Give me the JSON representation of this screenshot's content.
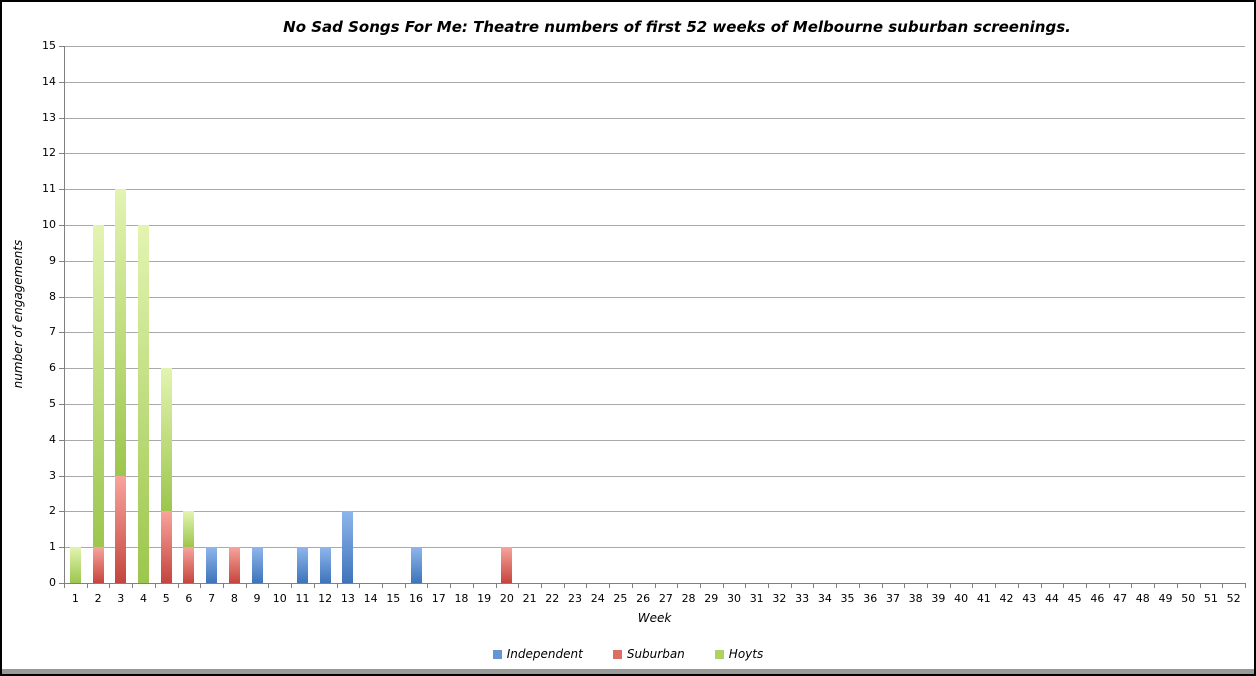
{
  "window": {
    "background": "#ffffff",
    "border_color": "#000000",
    "bottom_bar_color": "#999999"
  },
  "chart_data": {
    "type": "stacked-bar",
    "title": "No Sad Songs For Me: Theatre numbers of first 52 weeks of Melbourne suburban screenings.",
    "xlabel": "Week",
    "ylabel": "number of engagements",
    "x": [
      1,
      2,
      3,
      4,
      5,
      6,
      7,
      8,
      9,
      10,
      11,
      12,
      13,
      14,
      15,
      16,
      17,
      18,
      19,
      20,
      21,
      22,
      23,
      24,
      25,
      26,
      27,
      28,
      29,
      30,
      31,
      32,
      33,
      34,
      35,
      36,
      37,
      38,
      39,
      40,
      41,
      42,
      43,
      44,
      45,
      46,
      47,
      48,
      49,
      50,
      51,
      52
    ],
    "ylim": [
      0,
      15
    ],
    "yticks": [
      0,
      1,
      2,
      3,
      4,
      5,
      6,
      7,
      8,
      9,
      10,
      11,
      12,
      13,
      14,
      15
    ],
    "grid": true,
    "legend_position": "bottom",
    "axis_color": "#808080",
    "gridline_color": "#a9a9a9",
    "series": [
      {
        "name": "Independent",
        "legend_color": "#6496d6",
        "gradient_top": "#8fb6ec",
        "gradient_bottom": "#3e74ba",
        "values": [
          0,
          0,
          0,
          0,
          0,
          0,
          1,
          0,
          1,
          0,
          1,
          1,
          2,
          0,
          0,
          1,
          0,
          0,
          0,
          0,
          0,
          0,
          0,
          0,
          0,
          0,
          0,
          0,
          0,
          0,
          0,
          0,
          0,
          0,
          0,
          0,
          0,
          0,
          0,
          0,
          0,
          0,
          0,
          0,
          0,
          0,
          0,
          0,
          0,
          0,
          0,
          0
        ]
      },
      {
        "name": "Suburban",
        "legend_color": "#dd6e66",
        "gradient_top": "#f8a49d",
        "gradient_bottom": "#c4453d",
        "values": [
          0,
          1,
          3,
          0,
          2,
          1,
          0,
          1,
          0,
          0,
          0,
          0,
          0,
          0,
          0,
          0,
          0,
          0,
          0,
          1,
          0,
          0,
          0,
          0,
          0,
          0,
          0,
          0,
          0,
          0,
          0,
          0,
          0,
          0,
          0,
          0,
          0,
          0,
          0,
          0,
          0,
          0,
          0,
          0,
          0,
          0,
          0,
          0,
          0,
          0,
          0,
          0
        ]
      },
      {
        "name": "Hoyts",
        "legend_color": "#b0d264",
        "gradient_top": "#e3f4b1",
        "gradient_bottom": "#9cc64d",
        "values": [
          1,
          9,
          8,
          10,
          4,
          1,
          0,
          0,
          0,
          0,
          0,
          0,
          0,
          0,
          0,
          0,
          0,
          0,
          0,
          0,
          0,
          0,
          0,
          0,
          0,
          0,
          0,
          0,
          0,
          0,
          0,
          0,
          0,
          0,
          0,
          0,
          0,
          0,
          0,
          0,
          0,
          0,
          0,
          0,
          0,
          0,
          0,
          0,
          0,
          0,
          0,
          0
        ]
      }
    ],
    "visible_column_tops": {
      "week_1": {
        "Hoyts": 1
      },
      "week_2": {
        "Hoyts": 10,
        "Suburban": 1
      },
      "week_3": {
        "Hoyts": 11,
        "Suburban": 3
      },
      "week_4": {
        "Hoyts": 10
      },
      "week_5": {
        "Hoyts": 6,
        "Suburban": 2
      },
      "week_6": {
        "Hoyts": 2,
        "Suburban": 1
      },
      "week_7": {
        "Independent": 1
      },
      "week_8": {
        "Suburban": 1
      },
      "week_9": {
        "Independent": 1
      },
      "week_11": {
        "Independent": 1
      },
      "week_12": {
        "Independent": 1
      },
      "week_13": {
        "Independent": 2
      },
      "week_16": {
        "Independent": 1
      },
      "week_20": {
        "Suburban": 1
      }
    }
  }
}
